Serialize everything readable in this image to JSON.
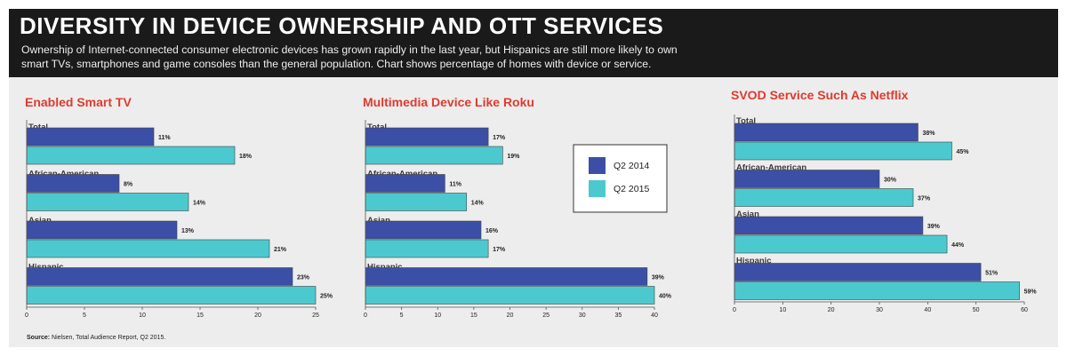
{
  "header": {
    "title": "DIVERSITY IN DEVICE OWNERSHIP AND OTT SERVICES",
    "subtitle": "Ownership of Internet-connected consumer electronic devices has grown rapidly in the last year, but Hispanics are still more likely to own smart TVs, smartphones and game consoles than the general population. Chart shows percentage of homes with device or service."
  },
  "legend": {
    "entries": [
      "Q2 2014",
      "Q2 2015"
    ]
  },
  "colors": {
    "q2_2014": "#3c4fa6",
    "q2_2015": "#4cc9cf",
    "title_red": "#e03a2e"
  },
  "source": {
    "label": "Source:",
    "text": " Nielsen, Total Audience Report, Q2 2015."
  },
  "chart_data": [
    {
      "type": "bar",
      "orientation": "horizontal",
      "title": "Enabled Smart TV",
      "categories": [
        "Total",
        "African-American",
        "Asian",
        "Hispanic"
      ],
      "series": [
        {
          "name": "Q2 2014",
          "values": [
            11,
            8,
            13,
            23
          ]
        },
        {
          "name": "Q2 2015",
          "values": [
            18,
            14,
            21,
            25
          ]
        }
      ],
      "xlim": [
        0,
        25
      ],
      "ticks": [
        0,
        5,
        10,
        15,
        20,
        25
      ],
      "grid": false
    },
    {
      "type": "bar",
      "orientation": "horizontal",
      "title": "Multimedia Device Like Roku",
      "categories": [
        "Total",
        "African-American",
        "Asian",
        "Hispanic"
      ],
      "series": [
        {
          "name": "Q2 2014",
          "values": [
            17,
            11,
            16,
            39
          ]
        },
        {
          "name": "Q2 2015",
          "values": [
            19,
            14,
            17,
            40
          ]
        }
      ],
      "xlim": [
        0,
        40
      ],
      "ticks": [
        0,
        5,
        10,
        15,
        20,
        25,
        30,
        35,
        40
      ],
      "grid": false,
      "legend": "top-right"
    },
    {
      "type": "bar",
      "orientation": "horizontal",
      "title": "SVOD Service Such As Netflix",
      "categories": [
        "Total",
        "African-American",
        "Asian",
        "Hispanic"
      ],
      "series": [
        {
          "name": "Q2 2014",
          "values": [
            38,
            30,
            39,
            51
          ]
        },
        {
          "name": "Q2 2015",
          "values": [
            45,
            37,
            44,
            59
          ]
        }
      ],
      "xlim": [
        0,
        60
      ],
      "ticks": [
        0,
        10,
        20,
        30,
        40,
        50,
        60
      ],
      "grid": false
    }
  ]
}
